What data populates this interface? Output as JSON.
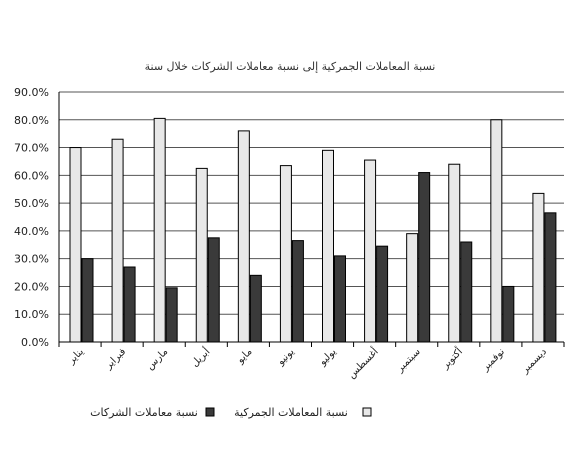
{
  "chart_data": {
    "type": "bar",
    "title": "نسبة المعاملات الجمركية إلى نسبة معاملات الشركات خلال سنة",
    "xlabel": "",
    "ylabel": "",
    "categories": [
      "يناير",
      "فبراير",
      "مارس",
      "أبريل",
      "مايو",
      "يونيو",
      "يوليو",
      "أغسطس",
      "سبتمبر",
      "أكتوبر",
      "نوفمبر",
      "ديسمبر"
    ],
    "series": [
      {
        "name": "نسبة المعاملات الجمركية",
        "color": "#e8e8e8",
        "values": [
          70.0,
          73.0,
          80.5,
          62.5,
          76.0,
          63.5,
          69.0,
          65.5,
          39.0,
          64.0,
          80.0,
          53.5
        ]
      },
      {
        "name": "نسبة معاملات الشركات",
        "color": "#3a3a3a",
        "values": [
          30.0,
          27.0,
          19.5,
          37.5,
          24.0,
          36.5,
          31.0,
          34.5,
          61.0,
          36.0,
          20.0,
          46.5
        ]
      }
    ],
    "yticks": [
      "0.0%",
      "10.0%",
      "20.0%",
      "30.0%",
      "40.0%",
      "50.0%",
      "60.0%",
      "70.0%",
      "80.0%",
      "90.0%"
    ],
    "ylim": [
      0,
      90
    ],
    "grid": true,
    "legend": "bottom"
  }
}
